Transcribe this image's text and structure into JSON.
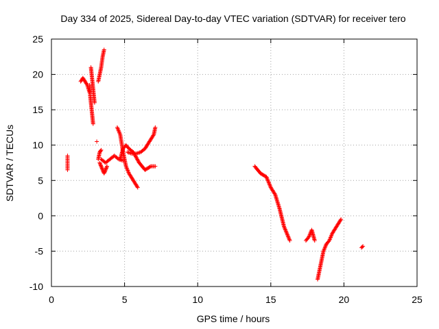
{
  "chart_data": {
    "type": "scatter",
    "title": "Day 334 of 2025, Sidereal Day-to-day VTEC variation (SDTVAR) for receiver tero",
    "xlabel": "GPS time / hours",
    "ylabel": "SDTVAR / TECUs",
    "xlim": [
      0,
      25
    ],
    "ylim": [
      -10,
      25
    ],
    "xticks": [
      "0",
      "5",
      "10",
      "15",
      "20",
      "25"
    ],
    "yticks": [
      "25",
      "20",
      "15",
      "10",
      "5",
      "0",
      "-5",
      "-10"
    ],
    "grid": true,
    "legend": "none",
    "marker": "+",
    "color": "#ff0000",
    "tracks": [
      {
        "x": [
          1.1,
          1.1,
          1.1,
          1.1,
          1.1
        ],
        "y": [
          8.5,
          8.0,
          7.5,
          7.0,
          6.5
        ]
      },
      {
        "x": [
          2.0,
          2.15,
          2.3,
          2.45,
          2.6
        ],
        "y": [
          19.0,
          19.5,
          19.0,
          18.5,
          17.5
        ]
      },
      {
        "x": [
          2.6,
          2.65,
          2.7,
          2.75,
          2.8,
          2.85
        ],
        "y": [
          18.5,
          17.0,
          16.0,
          15.0,
          14.0,
          13.0
        ]
      },
      {
        "x": [
          2.7,
          2.75,
          2.8,
          2.85,
          2.9,
          2.95
        ],
        "y": [
          21.0,
          20.0,
          19.0,
          18.0,
          17.0,
          16.0
        ]
      },
      {
        "x": [
          3.1
        ],
        "y": [
          10.5
        ]
      },
      {
        "x": [
          3.2,
          3.3,
          3.4,
          3.5,
          3.6
        ],
        "y": [
          19.0,
          20.0,
          21.0,
          22.5,
          23.5
        ]
      },
      {
        "x": [
          3.2,
          3.3,
          3.4
        ],
        "y": [
          8.0,
          9.0,
          9.3
        ]
      },
      {
        "x": [
          3.3,
          3.4,
          3.5,
          3.6,
          3.7,
          3.8
        ],
        "y": [
          7.5,
          7.0,
          6.5,
          6.0,
          6.5,
          7.0
        ]
      },
      {
        "x": [
          3.4,
          3.7,
          4.0,
          4.3,
          4.6,
          4.9
        ],
        "y": [
          8.0,
          7.5,
          8.0,
          8.5,
          8.0,
          7.8
        ]
      },
      {
        "x": [
          4.5,
          4.7,
          4.9,
          5.1,
          5.3,
          5.6,
          5.9
        ],
        "y": [
          12.5,
          11.5,
          9.0,
          7.0,
          6.0,
          5.0,
          4.0
        ]
      },
      {
        "x": [
          4.7,
          4.9,
          5.1,
          5.3,
          5.6,
          6.0,
          6.4,
          6.8,
          7.1
        ],
        "y": [
          8.0,
          9.5,
          10.0,
          9.5,
          9.0,
          7.5,
          6.5,
          7.0,
          7.0
        ]
      },
      {
        "x": [
          5.2,
          5.5,
          5.8,
          6.1,
          6.4,
          6.7,
          7.0,
          7.1
        ],
        "y": [
          9.0,
          8.8,
          8.8,
          9.0,
          9.5,
          10.5,
          11.5,
          12.5
        ]
      },
      {
        "x": [
          13.9,
          14.3,
          14.7,
          15.0,
          15.3,
          15.6,
          15.9,
          16.3
        ],
        "y": [
          7.0,
          6.0,
          5.5,
          4.0,
          3.0,
          1.0,
          -1.5,
          -3.5
        ]
      },
      {
        "x": [
          17.4,
          17.6,
          17.8,
          18.0
        ],
        "y": [
          -3.5,
          -3.0,
          -2.0,
          -3.5
        ]
      },
      {
        "x": [
          18.2,
          18.4,
          18.6,
          18.8
        ],
        "y": [
          -9.0,
          -7.0,
          -5.0,
          -4.0
        ]
      },
      {
        "x": [
          18.8,
          19.0,
          19.2,
          19.5,
          19.8
        ],
        "y": [
          -4.0,
          -3.5,
          -2.5,
          -1.5,
          -0.5
        ]
      },
      {
        "x": [
          21.2,
          21.3
        ],
        "y": [
          -4.5,
          -4.3
        ]
      }
    ]
  }
}
